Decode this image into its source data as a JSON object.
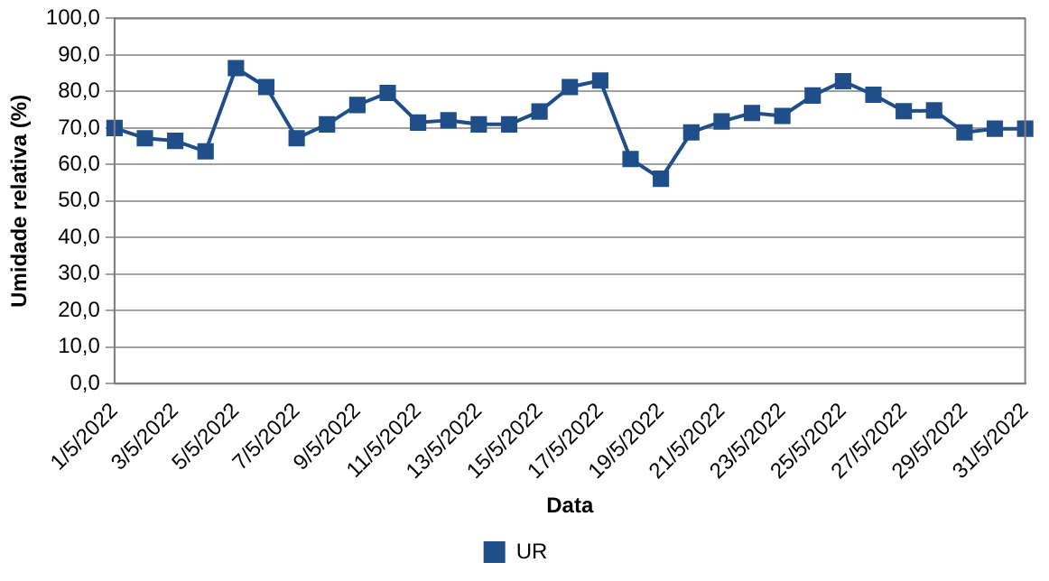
{
  "chart_data": {
    "type": "line",
    "xlabel": "Data",
    "ylabel": "Umidade relativa (%)",
    "categories": [
      "1/5/2022",
      null,
      "3/5/2022",
      null,
      "5/5/2022",
      null,
      "7/5/2022",
      null,
      "9/5/2022",
      null,
      "11/5/2022",
      null,
      "13/5/2022",
      null,
      "15/5/2022",
      null,
      "17/5/2022",
      null,
      "19/5/2022",
      null,
      "21/5/2022",
      null,
      "23/5/2022",
      null,
      "25/5/2022",
      null,
      "27/5/2022",
      null,
      "29/5/2022",
      null,
      "31/5/2022"
    ],
    "series": [
      {
        "name": "UR",
        "color": "#1f4e89",
        "values": [
          70.0,
          67.2,
          66.5,
          63.6,
          86.4,
          81.2,
          67.2,
          71.0,
          76.3,
          79.6,
          71.5,
          72.1,
          71.0,
          71.0,
          74.5,
          81.2,
          83.0,
          61.5,
          56.1,
          68.8,
          71.8,
          74.1,
          73.3,
          78.9,
          82.8,
          79.1,
          74.6,
          74.8,
          68.8,
          69.8,
          69.8
        ]
      }
    ],
    "ylim": [
      0,
      100
    ],
    "yticks": [
      {
        "value": 0,
        "label": "0,0"
      },
      {
        "value": 10,
        "label": "10,0"
      },
      {
        "value": 20,
        "label": "20,0"
      },
      {
        "value": 30,
        "label": "30,0"
      },
      {
        "value": 40,
        "label": "40,0"
      },
      {
        "value": 50,
        "label": "50,0"
      },
      {
        "value": 60,
        "label": "60,0"
      },
      {
        "value": 70,
        "label": "70,0"
      },
      {
        "value": 80,
        "label": "80,0"
      },
      {
        "value": 90,
        "label": "90,0"
      },
      {
        "value": 100,
        "label": "100,0"
      }
    ],
    "grid": "y",
    "legend": "bottom",
    "marker": "square",
    "line_style": "solid"
  }
}
